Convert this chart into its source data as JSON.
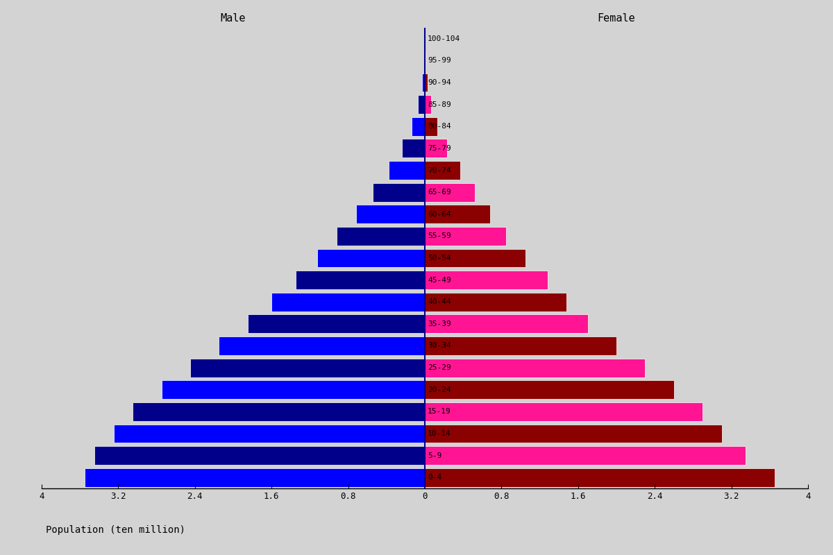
{
  "age_groups": [
    "0-4",
    "5-9",
    "10-14",
    "15-19",
    "20-24",
    "25-29",
    "30-34",
    "35-39",
    "40-44",
    "45-49",
    "50-54",
    "55-59",
    "60-64",
    "65-69",
    "70-74",
    "75-79",
    "80-84",
    "85-89",
    "90-94",
    "95-99",
    "100-104"
  ],
  "male": [
    3.55,
    3.45,
    3.25,
    3.05,
    2.75,
    2.45,
    2.15,
    1.85,
    1.6,
    1.35,
    1.12,
    0.92,
    0.72,
    0.54,
    0.38,
    0.24,
    0.14,
    0.07,
    0.03,
    0.01,
    0.003
  ],
  "female": [
    3.65,
    3.35,
    3.1,
    2.9,
    2.6,
    2.3,
    2.0,
    1.7,
    1.48,
    1.28,
    1.05,
    0.85,
    0.68,
    0.52,
    0.37,
    0.23,
    0.13,
    0.065,
    0.028,
    0.009,
    0.002
  ],
  "male_colors_alt": [
    "#0000FF",
    "#00008B"
  ],
  "female_colors_alt": [
    "#8B0000",
    "#FF1493"
  ],
  "xlim": 4.0,
  "xlabel": "Population (ten million)",
  "male_label": "Male",
  "female_label": "Female",
  "background_color": "#D3D3D3",
  "bar_height": 0.85,
  "label_fontsize": 8,
  "tick_fontsize": 9,
  "header_fontsize": 11,
  "center_line_color": "#00008B",
  "spine_color": "#000000"
}
